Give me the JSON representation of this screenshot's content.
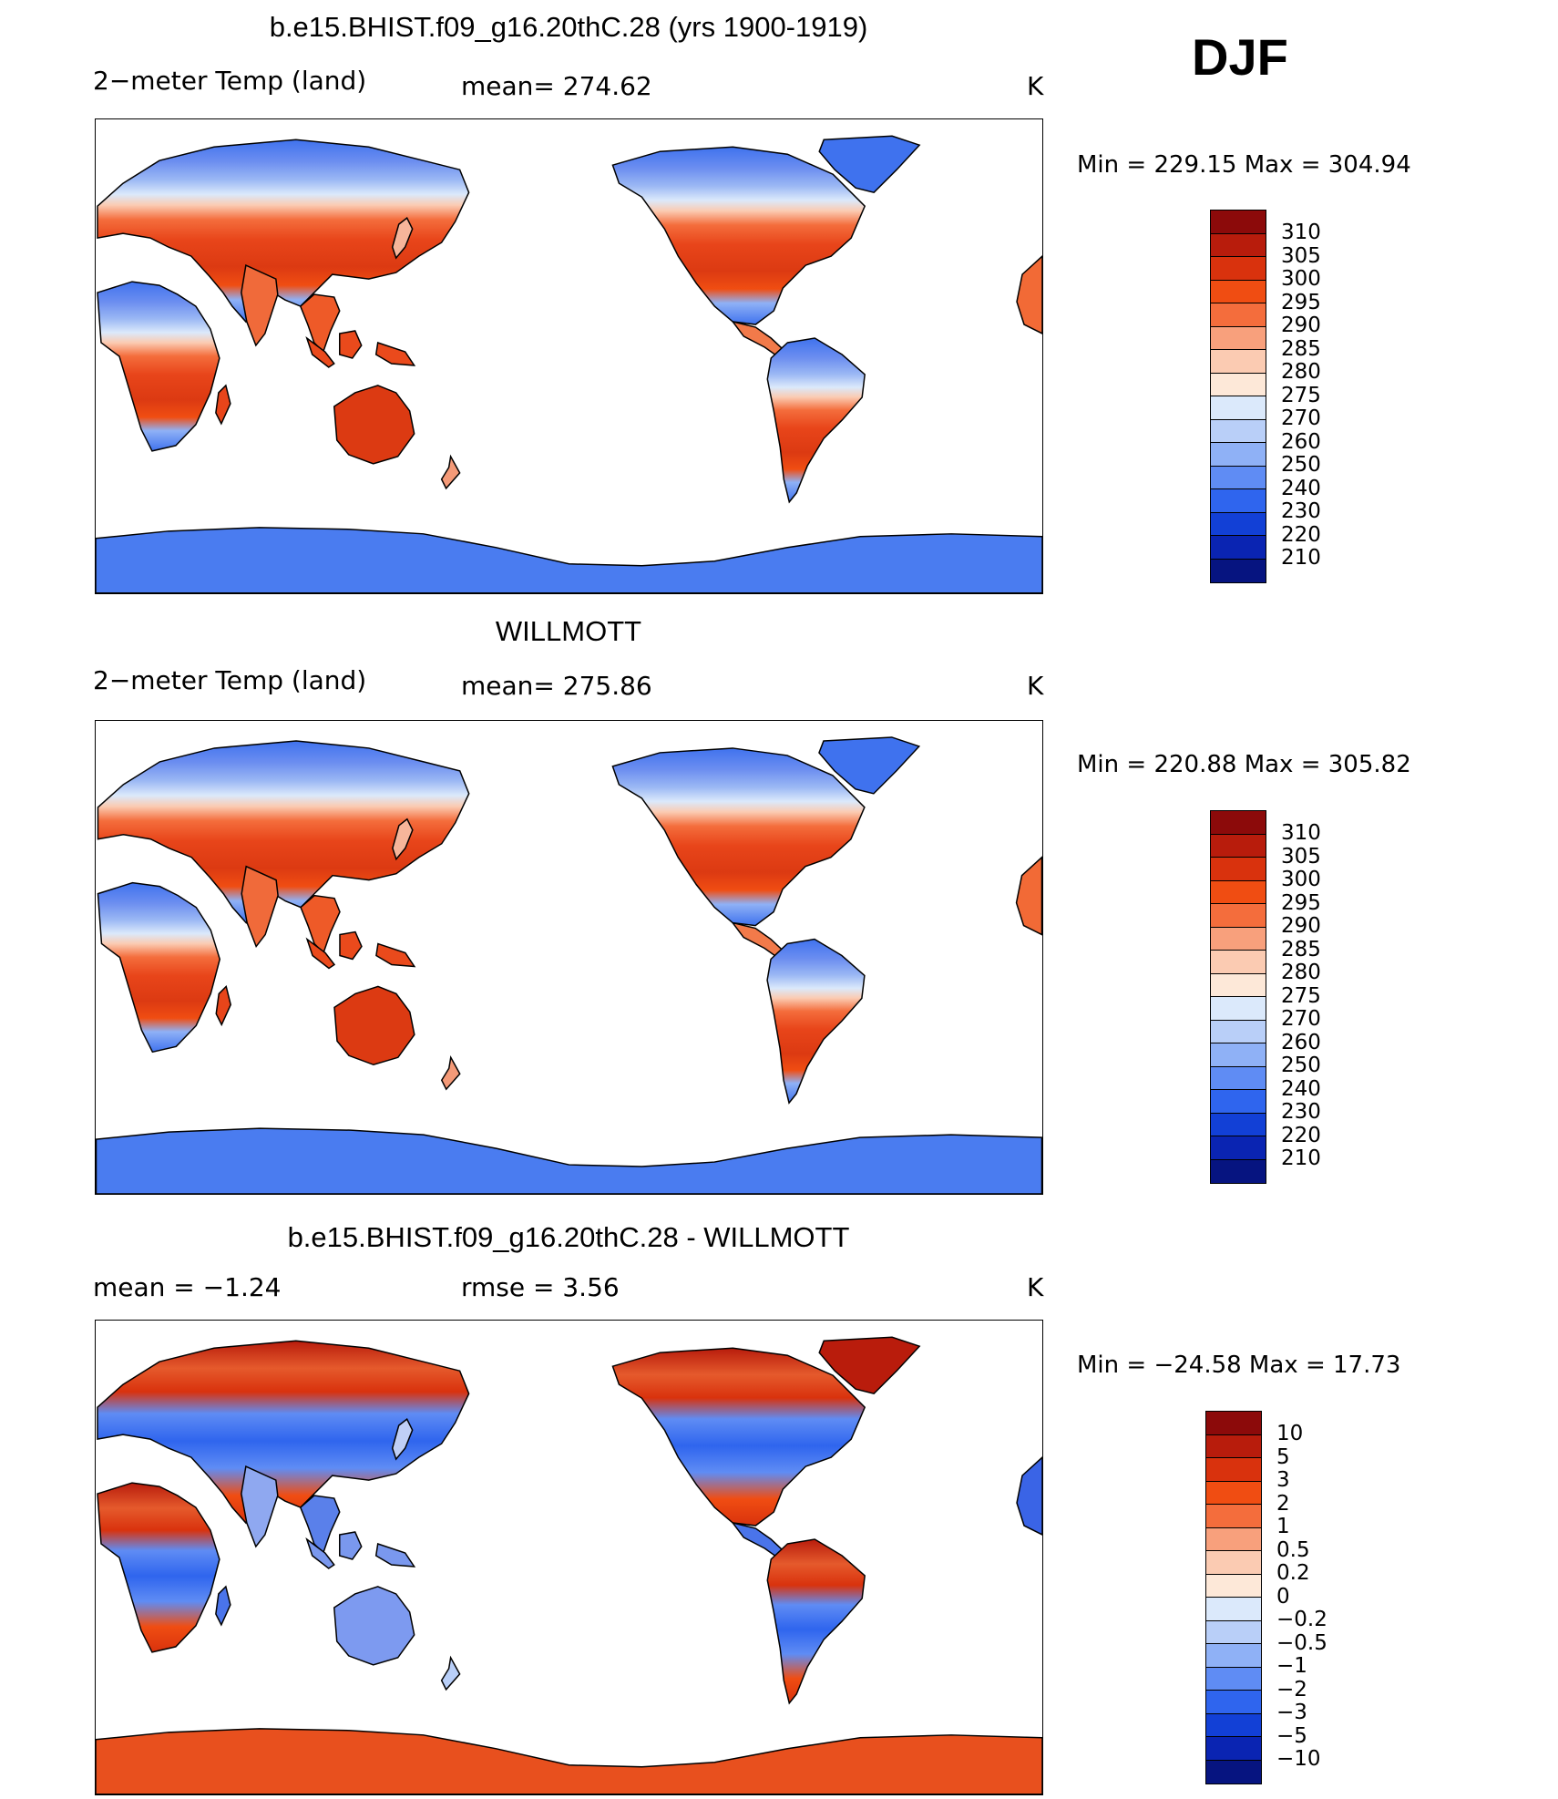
{
  "season": "DJF",
  "panels": [
    {
      "title": "b.e15.BHIST.f09_g16.20thC.28 (yrs 1900-1919)",
      "left_label": "2−meter Temp (land)",
      "mid_label": "mean= 274.62",
      "right_label": "K",
      "minmax": "Min = 229.15  Max = 304.94",
      "legend_levels": [
        "310",
        "305",
        "300",
        "295",
        "290",
        "285",
        "280",
        "275",
        "270",
        "260",
        "250",
        "240",
        "230",
        "220",
        "210"
      ],
      "legend_colors": [
        "#8c0a0a",
        "#b81c0c",
        "#d9320d",
        "#f04d12",
        "#f46d3c",
        "#f8a07c",
        "#fbcbb2",
        "#fde8d8",
        "#dbe9fb",
        "#b9cff8",
        "#8fb1f6",
        "#5f8cf4",
        "#2f65ee",
        "#1240d6",
        "#0a24b2",
        "#061480"
      ],
      "map_style": "temp"
    },
    {
      "title": "WILLMOTT",
      "left_label": "2−meter Temp (land)",
      "mid_label": "mean= 275.86",
      "right_label": "K",
      "minmax": "Min = 220.88  Max = 305.82",
      "legend_levels": [
        "310",
        "305",
        "300",
        "295",
        "290",
        "285",
        "280",
        "275",
        "270",
        "260",
        "250",
        "240",
        "230",
        "220",
        "210"
      ],
      "legend_colors": [
        "#8c0a0a",
        "#b81c0c",
        "#d9320d",
        "#f04d12",
        "#f46d3c",
        "#f8a07c",
        "#fbcbb2",
        "#fde8d8",
        "#dbe9fb",
        "#b9cff8",
        "#8fb1f6",
        "#5f8cf4",
        "#2f65ee",
        "#1240d6",
        "#0a24b2",
        "#061480"
      ],
      "map_style": "temp"
    },
    {
      "title": "b.e15.BHIST.f09_g16.20thC.28 - WILLMOTT",
      "left_label": "mean =   −1.24",
      "mid_label": "rmse =    3.56",
      "right_label": "K",
      "minmax": "Min = −24.58  Max =  17.73",
      "legend_levels": [
        "10",
        "5",
        "3",
        "2",
        "1",
        "0.5",
        "0.2",
        "0",
        "−0.2",
        "−0.5",
        "−1",
        "−2",
        "−3",
        "−5",
        "−10"
      ],
      "legend_colors": [
        "#8c0a0a",
        "#b81c0c",
        "#d9320d",
        "#f04d12",
        "#f46d3c",
        "#f8a07c",
        "#fbcbb2",
        "#fde8d8",
        "#dbe9fb",
        "#b9cff8",
        "#8fb1f6",
        "#5f8cf4",
        "#2f65ee",
        "#1240d6",
        "#0a24b2",
        "#061480"
      ],
      "map_style": "diff"
    }
  ]
}
